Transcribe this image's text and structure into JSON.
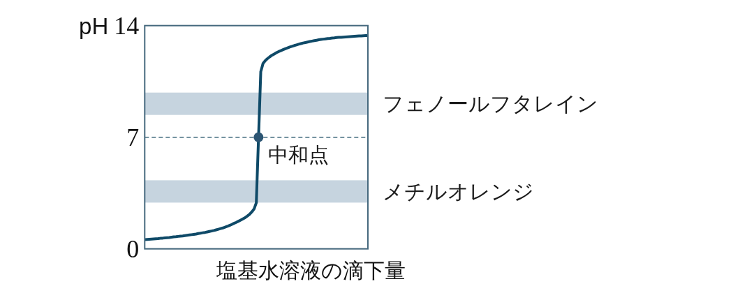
{
  "chart_data": {
    "type": "line",
    "ylabel": "pH",
    "xlabel": "塩基水溶液の滴下量",
    "categories": [
      null,
      null,
      null,
      null,
      null,
      null,
      null,
      null,
      null,
      null,
      null,
      null,
      null,
      null,
      null,
      null,
      null,
      null,
      null,
      null,
      null,
      null,
      null,
      null,
      null,
      null,
      null,
      null,
      null,
      null,
      null,
      null,
      null,
      null,
      null,
      null,
      null,
      null,
      null,
      null,
      null,
      null,
      null,
      null,
      null,
      null,
      null,
      null,
      null,
      null,
      null,
      null,
      null,
      null,
      null,
      null,
      null,
      null,
      null,
      null,
      null,
      null,
      null,
      null,
      null,
      null,
      null,
      null,
      null,
      null,
      null,
      null,
      null,
      null,
      null,
      null,
      null,
      null,
      null,
      null,
      null,
      null,
      null,
      null,
      null,
      null,
      null,
      null,
      null,
      null,
      null,
      null,
      null,
      null,
      null,
      null,
      null,
      null,
      null,
      null,
      null
    ],
    "ylim": [
      0,
      14
    ],
    "yticks": [
      0,
      7,
      14
    ],
    "tick_labels": "y",
    "series": [
      {
        "color": "#0f4a68",
        "values": [
          0.58,
          0.59,
          0.6,
          0.61,
          0.62,
          0.63,
          0.64,
          0.66,
          0.67,
          0.69,
          0.7,
          0.71,
          0.73,
          0.75,
          0.76,
          0.78,
          0.8,
          0.81,
          0.83,
          0.85,
          0.87,
          0.89,
          0.91,
          0.93,
          0.96,
          0.98,
          1.01,
          1.03,
          1.06,
          1.09,
          1.12,
          1.15,
          1.19,
          1.23,
          1.27,
          1.31,
          1.36,
          1.41,
          1.47,
          1.53,
          1.6,
          1.66,
          1.73,
          1.8,
          1.88,
          1.96,
          2.06,
          2.17,
          2.32,
          2.5,
          2.89,
          7,
          11.11,
          11.62,
          11.8,
          11.93,
          12.04,
          12.14,
          12.22,
          12.3,
          12.37,
          12.43,
          12.49,
          12.55,
          12.6,
          12.66,
          12.7,
          12.75,
          12.79,
          12.83,
          12.87,
          12.91,
          12.94,
          12.97,
          13.0,
          13.03,
          13.06,
          13.08,
          13.11,
          13.13,
          13.15,
          13.17,
          13.19,
          13.2,
          13.22,
          13.23,
          13.25,
          13.26,
          13.27,
          13.28,
          13.29,
          13.3,
          13.31,
          13.32,
          13.33,
          13.34,
          13.35,
          13.35,
          13.36,
          13.37,
          13.37
        ]
      },
      {
        "type": "scatter",
        "name": "中和点",
        "color": "#2c5573",
        "marker": "circle",
        "values": [
          null,
          null,
          null,
          null,
          null,
          null,
          null,
          null,
          null,
          null,
          null,
          null,
          null,
          null,
          null,
          null,
          null,
          null,
          null,
          null,
          null,
          null,
          null,
          null,
          null,
          null,
          null,
          null,
          null,
          null,
          null,
          null,
          null,
          null,
          null,
          null,
          null,
          null,
          null,
          null,
          null,
          null,
          null,
          null,
          null,
          null,
          null,
          null,
          null,
          null,
          null,
          7,
          null,
          null,
          null,
          null,
          null,
          null,
          null,
          null,
          null,
          null,
          null,
          null,
          null,
          null,
          null,
          null,
          null,
          null,
          null,
          null,
          null,
          null,
          null,
          null,
          null,
          null,
          null,
          null,
          null,
          null,
          null,
          null,
          null,
          null,
          null,
          null,
          null,
          null,
          null,
          null,
          null,
          null,
          null,
          null,
          null,
          null,
          null,
          null,
          null
        ]
      }
    ],
    "bands": [
      {
        "axis": "y",
        "from": 8.4,
        "to": 9.8,
        "label": "フェノールフタレイン",
        "color": "#c6d4df"
      },
      {
        "axis": "y",
        "from": 2.9,
        "to": 4.3,
        "label": "メチルオレンジ",
        "color": "#c6d4df"
      }
    ],
    "ref_lines": [
      {
        "axis": "y",
        "value": 7,
        "color": "#3a6478",
        "line_style": "dashed"
      }
    ]
  }
}
